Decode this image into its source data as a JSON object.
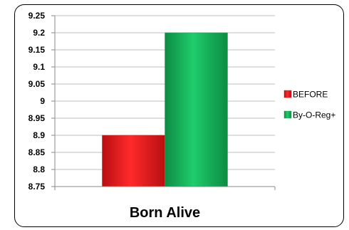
{
  "chart_data": {
    "type": "bar",
    "categories": [
      "Born Alive"
    ],
    "series": [
      {
        "name": "BEFORE",
        "values": [
          8.9
        ],
        "color": "#e8191c"
      },
      {
        "name": "By-O-Reg+",
        "values": [
          9.2
        ],
        "color": "#15ad58"
      }
    ],
    "xlabel": "Born Alive",
    "ylim": [
      8.75,
      9.25
    ],
    "yticks": [
      "8.75",
      "8.8",
      "8.85",
      "8.9",
      "8.95",
      "9",
      "9.05",
      "9.1",
      "9.15",
      "9.2",
      "9.25"
    ],
    "grid": true,
    "legend_position": "right"
  }
}
